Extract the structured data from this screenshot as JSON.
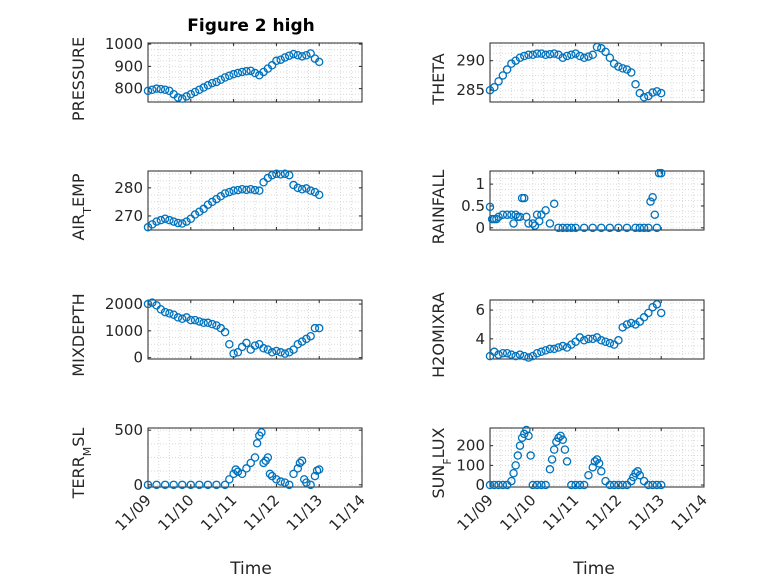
{
  "figure": {
    "title": "Figure 2 high",
    "xlabel": "Time"
  },
  "colors": {
    "marker": "#0072BD",
    "axis": "#262626",
    "grid": "#d9d9d9"
  },
  "xticks": [
    "11/09",
    "11/10",
    "11/11",
    "11/12",
    "11/13",
    "11/14"
  ],
  "chart_data": [
    {
      "type": "scatter",
      "ylabel": "PRESSURE",
      "ylim": [
        740,
        1005
      ],
      "yticks": [
        800,
        900,
        1000
      ],
      "xlim": [
        0,
        5
      ],
      "grid": true,
      "x": [
        0,
        0.1,
        0.2,
        0.3,
        0.4,
        0.5,
        0.6,
        0.7,
        0.8,
        0.9,
        1.0,
        1.1,
        1.2,
        1.3,
        1.4,
        1.5,
        1.6,
        1.7,
        1.8,
        1.9,
        2.0,
        2.1,
        2.2,
        2.3,
        2.4,
        2.5,
        2.6,
        2.7,
        2.8,
        2.9,
        3.0,
        3.1,
        3.2,
        3.3,
        3.4,
        3.5,
        3.6,
        3.7,
        3.8,
        3.9,
        4.0
      ],
      "y": [
        790,
        795,
        800,
        798,
        795,
        790,
        775,
        760,
        755,
        765,
        775,
        785,
        795,
        805,
        815,
        825,
        830,
        840,
        850,
        858,
        865,
        870,
        875,
        878,
        880,
        870,
        860,
        875,
        890,
        905,
        925,
        930,
        940,
        948,
        955,
        950,
        945,
        950,
        958,
        935,
        920
      ]
    },
    {
      "type": "scatter",
      "ylabel": "THETA",
      "ylim": [
        283,
        293
      ],
      "yticks": [
        285,
        290
      ],
      "xlim": [
        0,
        5
      ],
      "grid": true,
      "x": [
        0,
        0.1,
        0.2,
        0.3,
        0.4,
        0.5,
        0.6,
        0.7,
        0.8,
        0.9,
        1.0,
        1.1,
        1.2,
        1.3,
        1.4,
        1.5,
        1.6,
        1.7,
        1.8,
        1.9,
        2.0,
        2.1,
        2.2,
        2.3,
        2.4,
        2.5,
        2.6,
        2.7,
        2.8,
        2.9,
        3.0,
        3.1,
        3.2,
        3.3,
        3.4,
        3.5,
        3.6,
        3.7,
        3.8,
        3.9,
        4.0
      ],
      "y": [
        285,
        285.5,
        286.5,
        287.5,
        288.5,
        289.5,
        290,
        290.5,
        290.8,
        291,
        291,
        291.2,
        291.2,
        291,
        291.1,
        291.2,
        291,
        290.5,
        290.8,
        291,
        291.2,
        290.8,
        290.5,
        290.7,
        291,
        292.3,
        292.1,
        291.5,
        290.5,
        289.5,
        289,
        288.7,
        288.5,
        288,
        286,
        284.5,
        283.8,
        284,
        284.6,
        284.8,
        284.5
      ]
    },
    {
      "type": "scatter",
      "ylabel": "AIR_TEMP",
      "ylim": [
        265,
        286
      ],
      "yticks": [
        270,
        280
      ],
      "xlim": [
        0,
        5
      ],
      "grid": true,
      "x": [
        0,
        0.1,
        0.2,
        0.3,
        0.4,
        0.5,
        0.6,
        0.7,
        0.8,
        0.9,
        1.0,
        1.1,
        1.2,
        1.3,
        1.4,
        1.5,
        1.6,
        1.7,
        1.8,
        1.9,
        2.0,
        2.1,
        2.2,
        2.3,
        2.4,
        2.5,
        2.6,
        2.7,
        2.8,
        2.9,
        3.0,
        3.1,
        3.2,
        3.3,
        3.4,
        3.5,
        3.6,
        3.7,
        3.8,
        3.9,
        4.0
      ],
      "y": [
        266,
        267,
        268,
        268.5,
        269,
        268.5,
        268,
        267.5,
        267.3,
        268,
        269,
        270.5,
        271.5,
        272.5,
        274,
        275,
        276,
        277,
        278,
        278.5,
        279,
        279.2,
        279.5,
        279.3,
        279.5,
        279.2,
        279,
        282,
        283.5,
        284.5,
        285,
        284.8,
        285,
        284.5,
        281,
        280,
        279.5,
        279.8,
        279,
        278.5,
        277.5
      ]
    },
    {
      "type": "scatter",
      "ylabel": "RAINFALL",
      "ylim": [
        -0.05,
        1.3
      ],
      "yticks": [
        0,
        0.5,
        1
      ],
      "xlim": [
        0,
        5
      ],
      "grid": true,
      "x": [
        0,
        0.05,
        0.1,
        0.15,
        0.2,
        0.3,
        0.4,
        0.5,
        0.55,
        0.6,
        0.65,
        0.7,
        0.75,
        0.8,
        0.85,
        0.9,
        1.0,
        1.05,
        1.1,
        1.15,
        1.2,
        1.3,
        1.4,
        1.5,
        1.6,
        1.7,
        1.8,
        1.9,
        2.0,
        2.2,
        2.4,
        2.6,
        2.8,
        3.0,
        3.2,
        3.4,
        3.5,
        3.6,
        3.7,
        3.75,
        3.8,
        3.85,
        3.9,
        3.95,
        4.0
      ],
      "y": [
        0.48,
        0.2,
        0.2,
        0.2,
        0.25,
        0.3,
        0.3,
        0.3,
        0.1,
        0.3,
        0.25,
        0.25,
        0.68,
        0.68,
        0.25,
        0.1,
        0.1,
        0.05,
        0.3,
        0.15,
        0.3,
        0.4,
        0.1,
        0.55,
        0,
        0,
        0,
        0,
        0,
        0,
        0,
        0,
        0,
        0,
        0,
        0,
        0,
        0,
        0,
        0.6,
        0.7,
        0.3,
        0,
        1.25,
        1.25
      ]
    },
    {
      "type": "scatter",
      "ylabel": "MIXDEPTH",
      "ylim": [
        -50,
        2150
      ],
      "yticks": [
        0,
        1000,
        2000
      ],
      "xlim": [
        0,
        5
      ],
      "grid": true,
      "x": [
        0,
        0.1,
        0.2,
        0.3,
        0.4,
        0.5,
        0.6,
        0.7,
        0.8,
        0.9,
        1.0,
        1.1,
        1.2,
        1.3,
        1.4,
        1.5,
        1.6,
        1.7,
        1.8,
        1.9,
        2.0,
        2.1,
        2.2,
        2.3,
        2.4,
        2.5,
        2.6,
        2.7,
        2.8,
        2.9,
        3.0,
        3.1,
        3.2,
        3.3,
        3.4,
        3.5,
        3.6,
        3.7,
        3.8,
        3.9,
        4.0
      ],
      "y": [
        2000,
        2050,
        1950,
        1800,
        1700,
        1650,
        1600,
        1500,
        1450,
        1500,
        1400,
        1400,
        1350,
        1300,
        1300,
        1250,
        1200,
        1100,
        950,
        500,
        150,
        200,
        400,
        550,
        300,
        450,
        500,
        350,
        300,
        200,
        250,
        200,
        150,
        200,
        300,
        500,
        600,
        700,
        800,
        1100,
        1100
      ]
    },
    {
      "type": "scatter",
      "ylabel": "H2OMIXRA",
      "ylim": [
        2.6,
        6.7
      ],
      "yticks": [
        4,
        6
      ],
      "xlim": [
        0,
        5
      ],
      "grid": true,
      "x": [
        0,
        0.1,
        0.2,
        0.3,
        0.4,
        0.5,
        0.6,
        0.7,
        0.8,
        0.9,
        1.0,
        1.1,
        1.2,
        1.3,
        1.4,
        1.5,
        1.6,
        1.7,
        1.8,
        1.9,
        2.0,
        2.1,
        2.2,
        2.3,
        2.4,
        2.5,
        2.6,
        2.7,
        2.8,
        2.9,
        3.0,
        3.1,
        3.2,
        3.3,
        3.4,
        3.5,
        3.6,
        3.7,
        3.8,
        3.9,
        4.0
      ],
      "y": [
        2.8,
        3.1,
        2.9,
        3.0,
        3.0,
        2.9,
        2.8,
        2.9,
        2.8,
        2.7,
        2.8,
        3.0,
        3.1,
        3.2,
        3.3,
        3.3,
        3.4,
        3.5,
        3.4,
        3.6,
        3.8,
        4.1,
        3.9,
        4.0,
        4.0,
        4.1,
        3.9,
        3.8,
        3.7,
        3.6,
        3.9,
        4.8,
        5.0,
        5.1,
        5.0,
        5.2,
        5.5,
        5.8,
        6.2,
        6.4,
        5.8
      ]
    },
    {
      "type": "scatter",
      "ylabel": "TERR_MSL",
      "ylim": [
        -20,
        520
      ],
      "yticks": [
        0,
        500
      ],
      "xlim": [
        0,
        5
      ],
      "grid": true,
      "x": [
        0,
        0.2,
        0.4,
        0.6,
        0.8,
        1.0,
        1.2,
        1.4,
        1.6,
        1.8,
        1.9,
        2.0,
        2.05,
        2.1,
        2.2,
        2.3,
        2.4,
        2.5,
        2.55,
        2.6,
        2.65,
        2.7,
        2.75,
        2.8,
        2.85,
        2.9,
        3.0,
        3.1,
        3.2,
        3.3,
        3.4,
        3.5,
        3.55,
        3.6,
        3.65,
        3.7,
        3.8,
        3.9,
        3.95,
        4.0
      ],
      "y": [
        0,
        0,
        0,
        0,
        0,
        0,
        0,
        0,
        0,
        0,
        50,
        100,
        140,
        120,
        100,
        150,
        200,
        250,
        380,
        450,
        480,
        200,
        220,
        250,
        100,
        80,
        50,
        30,
        20,
        0,
        100,
        150,
        200,
        220,
        50,
        20,
        0,
        80,
        130,
        140
      ]
    },
    {
      "type": "scatter",
      "ylabel": "SUN_FLUX",
      "ylim": [
        -10,
        290
      ],
      "yticks": [
        0,
        100,
        200
      ],
      "xlim": [
        0,
        5
      ],
      "grid": true,
      "x": [
        0,
        0.1,
        0.2,
        0.3,
        0.4,
        0.5,
        0.55,
        0.6,
        0.65,
        0.7,
        0.75,
        0.8,
        0.85,
        0.9,
        0.95,
        1.0,
        1.1,
        1.2,
        1.3,
        1.4,
        1.45,
        1.5,
        1.55,
        1.6,
        1.65,
        1.7,
        1.75,
        1.8,
        1.9,
        2.0,
        2.1,
        2.2,
        2.3,
        2.4,
        2.45,
        2.5,
        2.55,
        2.6,
        2.7,
        2.8,
        2.9,
        3.0,
        3.1,
        3.2,
        3.3,
        3.35,
        3.4,
        3.45,
        3.5,
        3.6,
        3.7,
        3.8,
        3.9,
        4.0
      ],
      "y": [
        0,
        0,
        0,
        0,
        0,
        20,
        60,
        100,
        150,
        200,
        240,
        260,
        280,
        250,
        150,
        0,
        0,
        0,
        0,
        80,
        130,
        180,
        220,
        240,
        250,
        230,
        180,
        120,
        0,
        0,
        0,
        0,
        50,
        90,
        120,
        130,
        110,
        70,
        20,
        0,
        0,
        0,
        0,
        0,
        20,
        40,
        60,
        70,
        50,
        20,
        0,
        0,
        0,
        0
      ]
    }
  ]
}
